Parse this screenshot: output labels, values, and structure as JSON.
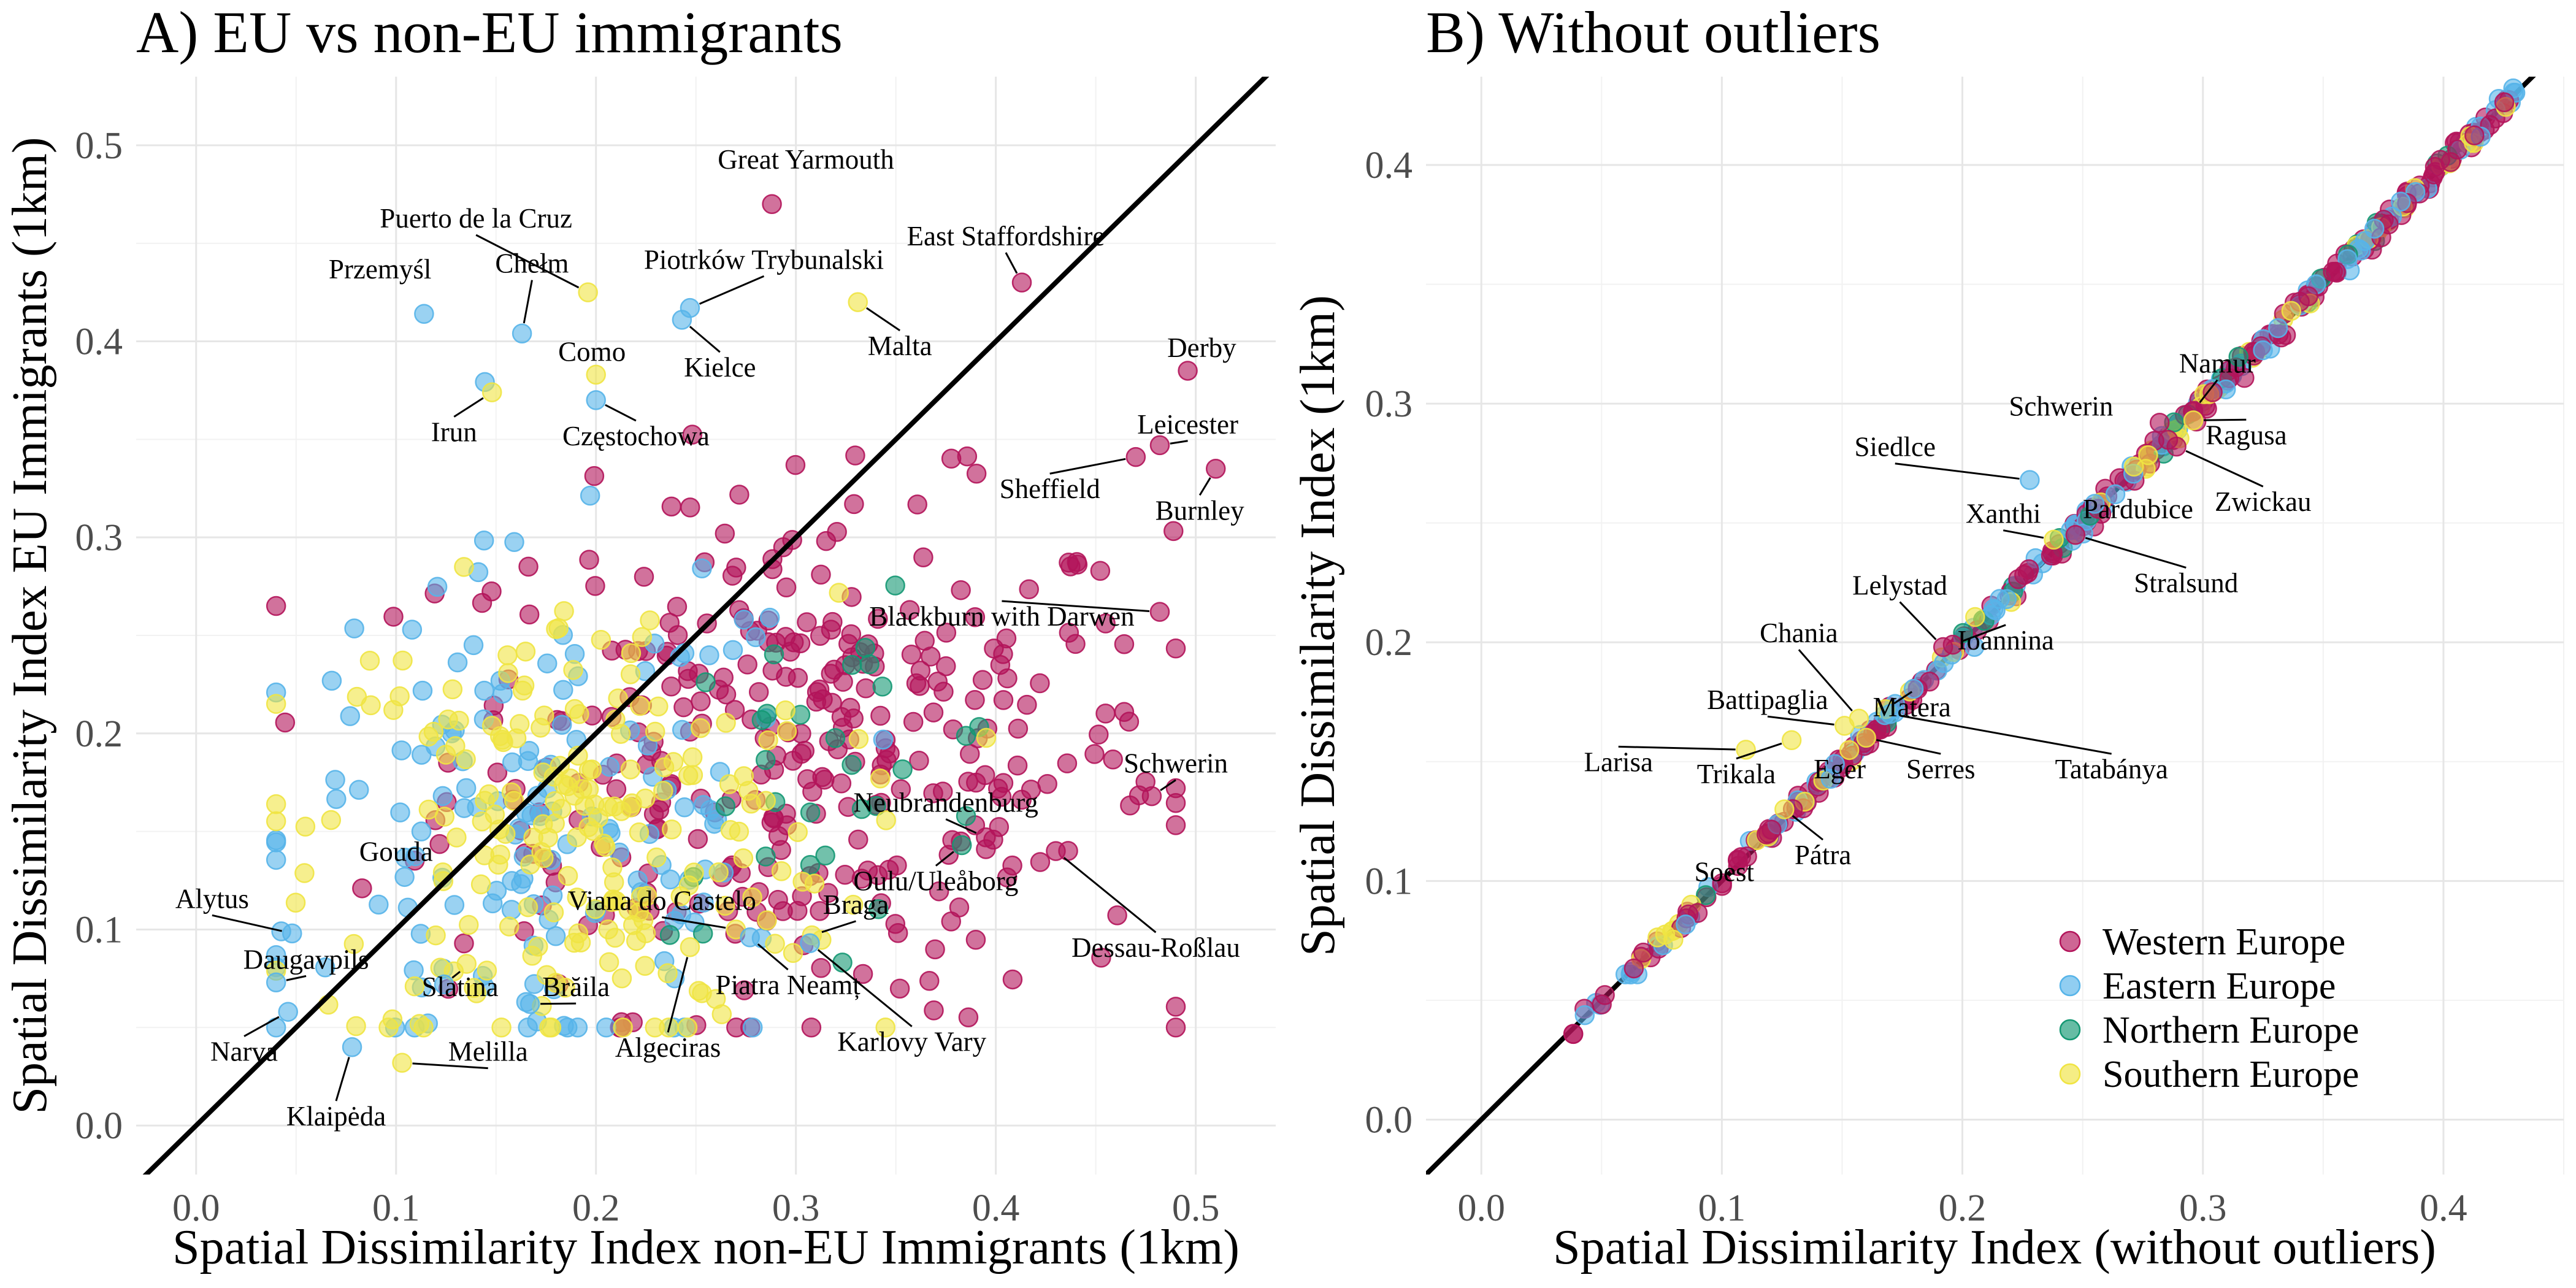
{
  "colors": {
    "Western Europe": "#b3145a",
    "Eastern Europe": "#56b4e9",
    "Northern Europe": "#149873",
    "Southern Europe": "#f0e442"
  },
  "legend": {
    "items": [
      "Western Europe",
      "Eastern Europe",
      "Northern Europe",
      "Southern Europe"
    ]
  },
  "chart_data": [
    {
      "type": "scatter",
      "title": "A) EU vs non-EU immigrants",
      "xlabel": "Spatial Dissimilarity Index non-EU Immigrants (1km)",
      "ylabel": "Spatial Dissimilarity Index EU Immigrants (1km)",
      "xlim": [
        -0.03,
        0.54
      ],
      "ylim": [
        -0.025,
        0.535
      ],
      "xticks": [
        0.0,
        0.1,
        0.2,
        0.3,
        0.4,
        0.5
      ],
      "yticks": [
        0.0,
        0.1,
        0.2,
        0.3,
        0.4,
        0.5
      ],
      "xtick_labels": [
        "0.0",
        "0.1",
        "0.2",
        "0.3",
        "0.4",
        "0.5"
      ],
      "ytick_labels": [
        "0.0",
        "0.1",
        "0.2",
        "0.3",
        "0.4",
        "0.5"
      ],
      "reference_line": "y = x",
      "grid": true,
      "labeled_points": [
        {
          "label": "Great Yarmouth",
          "x": 0.288,
          "y": 0.47,
          "region": "Western Europe",
          "tx": 0.305,
          "ty": 0.488,
          "leader": false
        },
        {
          "label": "Puerto de la Cruz",
          "x": 0.196,
          "y": 0.425,
          "region": "Southern Europe",
          "tx": 0.14,
          "ty": 0.458,
          "leader": true
        },
        {
          "label": "Przemyśl",
          "x": 0.114,
          "y": 0.414,
          "region": "Eastern Europe",
          "tx": 0.092,
          "ty": 0.432,
          "leader": false
        },
        {
          "label": "Chełm",
          "x": 0.163,
          "y": 0.404,
          "region": "Eastern Europe",
          "tx": 0.168,
          "ty": 0.435,
          "leader": true
        },
        {
          "label": "Piotrków Trybunalski",
          "x": 0.247,
          "y": 0.417,
          "region": "Eastern Europe",
          "tx": 0.284,
          "ty": 0.437,
          "leader": true
        },
        {
          "label": "East Staffordshire",
          "x": 0.413,
          "y": 0.43,
          "region": "Western Europe",
          "tx": 0.405,
          "ty": 0.449,
          "leader": true
        },
        {
          "label": "Como",
          "x": 0.2,
          "y": 0.383,
          "region": "Southern Europe",
          "tx": 0.198,
          "ty": 0.39,
          "leader": false
        },
        {
          "label": "Malta",
          "x": 0.331,
          "y": 0.42,
          "region": "Southern Europe",
          "tx": 0.352,
          "ty": 0.393,
          "leader": true
        },
        {
          "label": "Kielce",
          "x": 0.243,
          "y": 0.411,
          "region": "Eastern Europe",
          "tx": 0.262,
          "ty": 0.382,
          "leader": true
        },
        {
          "label": "Derby",
          "x": 0.496,
          "y": 0.385,
          "region": "Western Europe",
          "tx": 0.503,
          "ty": 0.392,
          "leader": false
        },
        {
          "label": "Irun",
          "x": 0.148,
          "y": 0.374,
          "region": "Southern Europe",
          "tx": 0.129,
          "ty": 0.349,
          "leader": true
        },
        {
          "label": "Częstochowa",
          "x": 0.2,
          "y": 0.37,
          "region": "Eastern Europe",
          "tx": 0.22,
          "ty": 0.347,
          "leader": true
        },
        {
          "label": "Leicester",
          "x": 0.482,
          "y": 0.347,
          "region": "Western Europe",
          "tx": 0.496,
          "ty": 0.353,
          "leader": true
        },
        {
          "label": "Sheffield",
          "x": 0.47,
          "y": 0.341,
          "region": "Western Europe",
          "tx": 0.427,
          "ty": 0.32,
          "leader": true
        },
        {
          "label": "Burnley",
          "x": 0.51,
          "y": 0.335,
          "region": "Western Europe",
          "tx": 0.502,
          "ty": 0.309,
          "leader": true
        },
        {
          "label": "Blackburn with Darwen",
          "x": 0.482,
          "y": 0.262,
          "region": "Western Europe",
          "tx": 0.403,
          "ty": 0.255,
          "leader": true
        },
        {
          "label": "Schwerin",
          "x": 0.478,
          "y": 0.168,
          "region": "Western Europe",
          "tx": 0.49,
          "ty": 0.18,
          "leader": true
        },
        {
          "label": "Neubrandenburg",
          "x": 0.395,
          "y": 0.147,
          "region": "Western Europe",
          "tx": 0.375,
          "ty": 0.16,
          "leader": true
        },
        {
          "label": "Gouda",
          "x": 0.083,
          "y": 0.121,
          "region": "Western Europe",
          "tx": 0.1,
          "ty": 0.135,
          "leader": false
        },
        {
          "label": "Oulu/Uleåborg",
          "x": 0.383,
          "y": 0.143,
          "region": "Northern Europe",
          "tx": 0.37,
          "ty": 0.12,
          "leader": true
        },
        {
          "label": "Alytus",
          "x": 0.048,
          "y": 0.098,
          "region": "Eastern Europe",
          "tx": 0.008,
          "ty": 0.111,
          "leader": true
        },
        {
          "label": "Viana do Castelo",
          "x": 0.27,
          "y": 0.1,
          "region": "Southern Europe",
          "tx": 0.233,
          "ty": 0.11,
          "leader": true
        },
        {
          "label": "Braga",
          "x": 0.308,
          "y": 0.097,
          "region": "Southern Europe",
          "tx": 0.33,
          "ty": 0.108,
          "leader": true
        },
        {
          "label": "Dessau-Roßlau",
          "x": 0.43,
          "y": 0.14,
          "region": "Western Europe",
          "tx": 0.48,
          "ty": 0.086,
          "leader": true
        },
        {
          "label": "Daugavpils",
          "x": 0.04,
          "y": 0.073,
          "region": "Eastern Europe",
          "tx": 0.055,
          "ty": 0.08,
          "leader": true
        },
        {
          "label": "Slatina",
          "x": 0.124,
          "y": 0.072,
          "region": "Eastern Europe",
          "tx": 0.132,
          "ty": 0.066,
          "leader": true
        },
        {
          "label": "Brăila",
          "x": 0.167,
          "y": 0.062,
          "region": "Eastern Europe",
          "tx": 0.19,
          "ty": 0.066,
          "leader": true
        },
        {
          "label": "Piatra Neamț",
          "x": 0.277,
          "y": 0.096,
          "region": "Eastern Europe",
          "tx": 0.296,
          "ty": 0.067,
          "leader": true
        },
        {
          "label": "Narva",
          "x": 0.046,
          "y": 0.058,
          "region": "Eastern Europe",
          "tx": 0.024,
          "ty": 0.033,
          "leader": true
        },
        {
          "label": "Algeciras",
          "x": 0.247,
          "y": 0.091,
          "region": "Southern Europe",
          "tx": 0.236,
          "ty": 0.035,
          "leader": true
        },
        {
          "label": "Karlovy Vary",
          "x": 0.307,
          "y": 0.093,
          "region": "Eastern Europe",
          "tx": 0.358,
          "ty": 0.038,
          "leader": true
        },
        {
          "label": "Melilla",
          "x": 0.103,
          "y": 0.032,
          "region": "Southern Europe",
          "tx": 0.146,
          "ty": 0.033,
          "leader": true
        },
        {
          "label": "Klaipėda",
          "x": 0.078,
          "y": 0.04,
          "region": "Eastern Europe",
          "tx": 0.07,
          "ty": 0.0,
          "leader": true
        }
      ],
      "point_cloud": {
        "Western Europe": {
          "count": 340,
          "x_center": 0.305,
          "y_center": 0.19,
          "x_spread": 0.09,
          "y_spread": 0.065
        },
        "Eastern Europe": {
          "count": 150,
          "x_center": 0.175,
          "y_center": 0.15,
          "x_spread": 0.07,
          "y_spread": 0.07
        },
        "Northern Europe": {
          "count": 30,
          "x_center": 0.32,
          "y_center": 0.18,
          "x_spread": 0.05,
          "y_spread": 0.04
        },
        "Southern Europe": {
          "count": 210,
          "x_center": 0.19,
          "y_center": 0.15,
          "x_spread": 0.065,
          "y_spread": 0.06
        }
      }
    },
    {
      "type": "scatter",
      "title": "B) Without outliers",
      "xlabel": "Spatial Dissimilarity Index (without outliers)",
      "ylabel": "Spatial Dissimilarity Index (1km)",
      "xlim": [
        -0.023,
        0.45
      ],
      "ylim": [
        -0.023,
        0.437
      ],
      "xticks": [
        0.0,
        0.1,
        0.2,
        0.3,
        0.4
      ],
      "yticks": [
        0.0,
        0.1,
        0.2,
        0.3,
        0.4
      ],
      "xtick_labels": [
        "0.0",
        "0.1",
        "0.2",
        "0.3",
        "0.4"
      ],
      "ytick_labels": [
        "0.0",
        "0.1",
        "0.2",
        "0.3",
        "0.4"
      ],
      "reference_line": "y = x",
      "grid": true,
      "labeled_points": [
        {
          "label": "Namur",
          "x": 0.296,
          "y": 0.297,
          "region": "Western Europe",
          "tx": 0.306,
          "ty": 0.313,
          "leader": true
        },
        {
          "label": "Schwerin",
          "x": 0.282,
          "y": 0.292,
          "region": "Western Europe",
          "tx": 0.241,
          "ty": 0.295,
          "leader": false
        },
        {
          "label": "Ragusa",
          "x": 0.296,
          "y": 0.293,
          "region": "Southern Europe",
          "tx": 0.318,
          "ty": 0.283,
          "leader": true
        },
        {
          "label": "Siedlce",
          "x": 0.228,
          "y": 0.268,
          "region": "Eastern Europe",
          "tx": 0.172,
          "ty": 0.278,
          "leader": true
        },
        {
          "label": "Zwickau",
          "x": 0.289,
          "y": 0.282,
          "region": "Western Europe",
          "tx": 0.325,
          "ty": 0.255,
          "leader": true
        },
        {
          "label": "Xanthi",
          "x": 0.238,
          "y": 0.243,
          "region": "Southern Europe",
          "tx": 0.217,
          "ty": 0.25,
          "leader": true
        },
        {
          "label": "Pardubice",
          "x": 0.255,
          "y": 0.258,
          "region": "Eastern Europe",
          "tx": 0.273,
          "ty": 0.252,
          "leader": false
        },
        {
          "label": "Stralsund",
          "x": 0.247,
          "y": 0.245,
          "region": "Western Europe",
          "tx": 0.293,
          "ty": 0.221,
          "leader": true
        },
        {
          "label": "Lelystad",
          "x": 0.192,
          "y": 0.198,
          "region": "Western Europe",
          "tx": 0.174,
          "ty": 0.22,
          "leader": true
        },
        {
          "label": "Chania",
          "x": 0.157,
          "y": 0.168,
          "region": "Southern Europe",
          "tx": 0.132,
          "ty": 0.2,
          "leader": true
        },
        {
          "label": "Ioannina",
          "x": 0.196,
          "y": 0.199,
          "region": "Western Europe",
          "tx": 0.218,
          "ty": 0.197,
          "leader": true
        },
        {
          "label": "Battipaglia",
          "x": 0.151,
          "y": 0.165,
          "region": "Southern Europe",
          "tx": 0.119,
          "ty": 0.172,
          "leader": true
        },
        {
          "label": "Matera",
          "x": 0.168,
          "y": 0.172,
          "region": "Southern Europe",
          "tx": 0.179,
          "ty": 0.169,
          "leader": true
        },
        {
          "label": "Larisa",
          "x": 0.11,
          "y": 0.155,
          "region": "Southern Europe",
          "tx": 0.057,
          "ty": 0.146,
          "leader": true
        },
        {
          "label": "Trikala",
          "x": 0.129,
          "y": 0.159,
          "region": "Southern Europe",
          "tx": 0.106,
          "ty": 0.141,
          "leader": true
        },
        {
          "label": "Eger",
          "x": 0.147,
          "y": 0.149,
          "region": "Eastern Europe",
          "tx": 0.149,
          "ty": 0.143,
          "leader": false
        },
        {
          "label": "Serres",
          "x": 0.16,
          "y": 0.16,
          "region": "Southern Europe",
          "tx": 0.191,
          "ty": 0.143,
          "leader": true
        },
        {
          "label": "Tatabánya",
          "x": 0.17,
          "y": 0.17,
          "region": "Eastern Europe",
          "tx": 0.262,
          "ty": 0.143,
          "leader": true
        },
        {
          "label": "Pátra",
          "x": 0.126,
          "y": 0.13,
          "region": "Southern Europe",
          "tx": 0.142,
          "ty": 0.107,
          "leader": true
        },
        {
          "label": "Soest",
          "x": 0.108,
          "y": 0.11,
          "region": "Western Europe",
          "tx": 0.101,
          "ty": 0.1,
          "leader": false
        }
      ],
      "point_cloud": {
        "diagonal_range": [
          0.033,
          0.43
        ],
        "count": 420
      }
    }
  ]
}
